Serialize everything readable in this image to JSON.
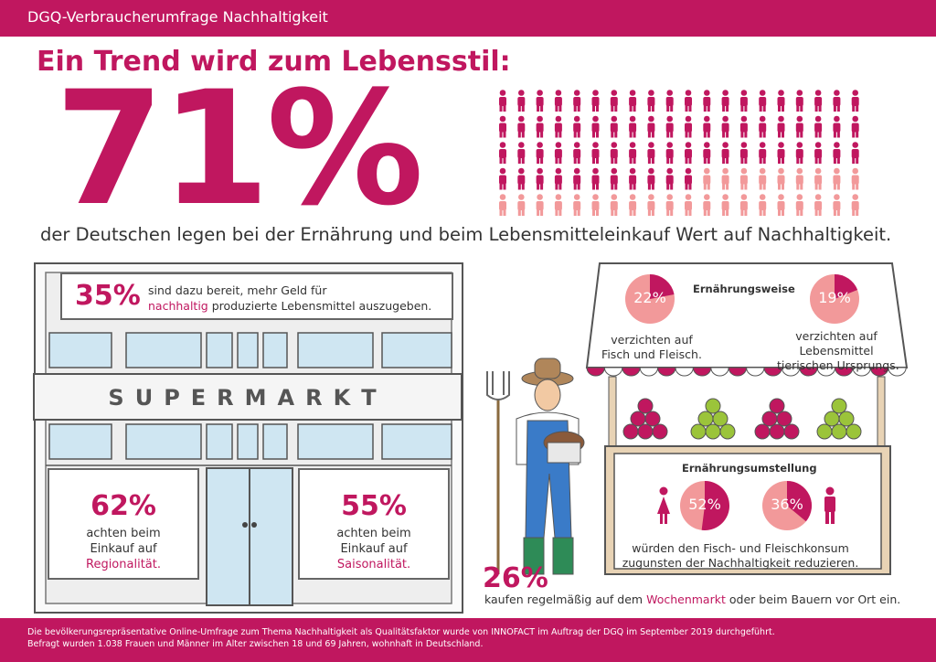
{
  "header": {
    "title": "DGQ-Verbraucherumfrage Nachhaltigkeit"
  },
  "hero": {
    "headline": "Ein Trend wird zum Lebensstil:",
    "percent": "71%",
    "statement": "der Deutschen legen bei der Ernährung und beim Lebensmitteleinkauf Wert auf Nachhaltigkeit.",
    "icon_grid": {
      "total": 100,
      "highlighted": 71
    }
  },
  "store": {
    "stat35": {
      "percent": "35%",
      "text_1": "sind dazu bereit, mehr Geld für",
      "highlight": "nachhaltig",
      "text_2": "produzierte Lebensmittel auszugeben."
    },
    "sign": "SUPERMARKT",
    "stat62": {
      "percent": "62%",
      "line1": "achten beim",
      "line2": "Einkauf auf",
      "highlight": "Regionalität."
    },
    "stat55": {
      "percent": "55%",
      "line1": "achten beim",
      "line2": "Einkauf auf",
      "highlight": "Saisonalität."
    }
  },
  "stand": {
    "ernaehrungsweise": {
      "title": "Ernährungsweise",
      "left": {
        "percent": "22%",
        "value": 22,
        "line1": "verzichten auf",
        "line2": "Fisch und Fleisch."
      },
      "right": {
        "percent": "19%",
        "value": 19,
        "line1": "verzichten auf",
        "line2": "Lebensmittel",
        "line3": "tierischen Ursprungs."
      }
    },
    "ernaehrungsumstellung": {
      "title": "Ernährungsumstellung",
      "women": {
        "percent": "52%",
        "value": 52
      },
      "men": {
        "percent": "36%",
        "value": 36
      },
      "line1": "würden den Fisch- und Fleischkonsum",
      "line2": "zugunsten der Nachhaltigkeit reduzieren."
    }
  },
  "market": {
    "percent": "26%",
    "text_1": "kaufen regelmäßig auf dem",
    "highlight": "Wochenmarkt",
    "text_2": "oder beim Bauern vor Ort ein."
  },
  "footer": {
    "line1": "Die bevölkerungsrepräsentative Online-Umfrage zum Thema Nachhaltigkeit als Qualitätsfaktor wurde von INNOFACT im Auftrag der DGQ im September 2019 durchgeführt.",
    "line2": "Befragt wurden 1.038 Frauen und Männer im Alter zwischen 18 und 69 Jahren, wohnhaft in Deutschland."
  },
  "colors": {
    "magenta": "#c0175f",
    "pink": "#f2999a"
  }
}
